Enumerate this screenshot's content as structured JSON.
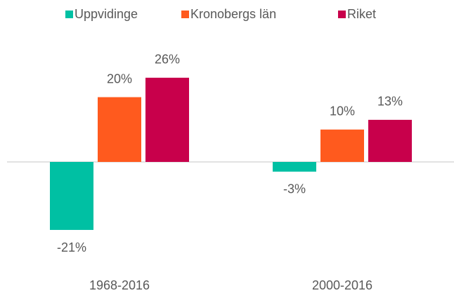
{
  "chart_data": {
    "type": "bar",
    "categories": [
      "1968-2016",
      "2000-2016"
    ],
    "series": [
      {
        "name": "Uppvidinge",
        "color": "#00c0a3",
        "values": [
          -21,
          -3
        ],
        "value_labels": [
          "-21%",
          "-3%"
        ]
      },
      {
        "name": "Kronobergs län",
        "color": "#ff5a1e",
        "values": [
          20,
          10
        ],
        "value_labels": [
          "20%",
          "10%"
        ]
      },
      {
        "name": "Riket",
        "color": "#c8004b",
        "values": [
          26,
          13
        ],
        "value_labels": [
          "26%",
          "13%"
        ]
      }
    ],
    "legend": "top"
  }
}
